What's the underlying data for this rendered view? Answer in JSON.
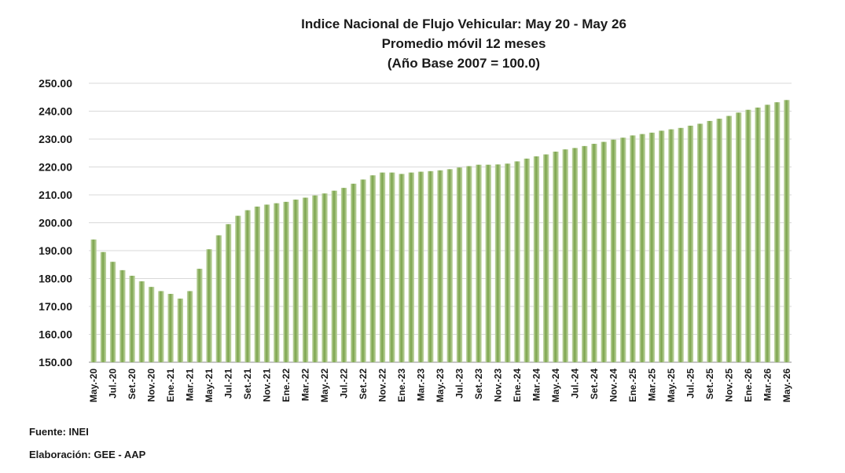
{
  "title_lines": [
    "Indice Nacional de Flujo Vehicular: May 20 - May 26",
    "Promedio móvil 12 meses",
    "(Año Base 2007 = 100.0)"
  ],
  "source": "Fuente: INEI",
  "elaboration": "Elaboración: GEE - AAP",
  "colors": {
    "bar_light": "#c4d8a8",
    "bar_dark": "#7aa34a",
    "grid": "#d9d9d9",
    "axis": "#8c8c8c"
  },
  "chart_data": {
    "type": "bar",
    "title": "Indice Nacional de Flujo Vehicular: May 20 - May 26",
    "subtitle": "Promedio móvil 12 meses (Año Base 2007 = 100.0)",
    "xlabel": "",
    "ylabel": "",
    "ylim": [
      150,
      250
    ],
    "yticks": [
      "150.00",
      "160.00",
      "170.00",
      "180.00",
      "190.00",
      "200.00",
      "210.00",
      "220.00",
      "230.00",
      "240.00",
      "250.00"
    ],
    "grid": true,
    "legend": "none",
    "x_tick_labels": [
      "May.-20",
      "Jul.-20",
      "Set.-20",
      "Nov.-20",
      "Ene.-21",
      "Mar.-21",
      "May.-21",
      "Jul.-21",
      "Set.-21",
      "Nov.-21",
      "Ene.-22",
      "Mar.-22",
      "May.-22",
      "Jul.-22",
      "Set.-22",
      "Nov.-22",
      "Ene.-23",
      "Mar.-23",
      "May.-23",
      "Jul.-23",
      "Set.-23",
      "Nov.-23",
      "Ene.-24",
      "Mar.-24",
      "May.-24",
      "Jul.-24",
      "Set.-24",
      "Nov.-24",
      "Ene.-25",
      "Mar.-25",
      "May.-25",
      "Jul.-25",
      "Set.-25",
      "Nov.-25",
      "Ene.-26",
      "Mar.-26",
      "May.-26"
    ],
    "categories": [
      "May.-20",
      "Jun.-20",
      "Jul.-20",
      "Ago.-20",
      "Set.-20",
      "Oct.-20",
      "Nov.-20",
      "Dic.-20",
      "Ene.-21",
      "Feb.-21",
      "Mar.-21",
      "Abr.-21",
      "May.-21",
      "Jun.-21",
      "Jul.-21",
      "Ago.-21",
      "Set.-21",
      "Oct.-21",
      "Nov.-21",
      "Dic.-21",
      "Ene.-22",
      "Feb.-22",
      "Mar.-22",
      "Abr.-22",
      "May.-22",
      "Jun.-22",
      "Jul.-22",
      "Ago.-22",
      "Set.-22",
      "Oct.-22",
      "Nov.-22",
      "Dic.-22",
      "Ene.-23",
      "Feb.-23",
      "Mar.-23",
      "Abr.-23",
      "May.-23",
      "Jun.-23",
      "Jul.-23",
      "Ago.-23",
      "Set.-23",
      "Oct.-23",
      "Nov.-23",
      "Dic.-23",
      "Ene.-24",
      "Feb.-24",
      "Mar.-24",
      "Abr.-24",
      "May.-24",
      "Jun.-24",
      "Jul.-24",
      "Ago.-24",
      "Set.-24",
      "Oct.-24",
      "Nov.-24",
      "Dic.-24",
      "Ene.-25",
      "Feb.-25",
      "Mar.-25",
      "Abr.-25",
      "May.-25",
      "Jun.-25",
      "Jul.-25",
      "Ago.-25",
      "Set.-25",
      "Oct.-25",
      "Nov.-25",
      "Dic.-25",
      "Ene.-26",
      "Feb.-26",
      "Mar.-26",
      "Abr.-26",
      "May.-26"
    ],
    "values": [
      194.0,
      189.5,
      186.0,
      183.0,
      181.0,
      179.0,
      177.0,
      175.5,
      174.5,
      172.8,
      175.5,
      183.5,
      190.5,
      195.5,
      199.5,
      202.5,
      204.5,
      205.8,
      206.5,
      207.0,
      207.5,
      208.3,
      209.0,
      209.8,
      210.5,
      211.5,
      212.5,
      214.0,
      215.5,
      217.0,
      218.0,
      218.0,
      217.5,
      218.0,
      218.3,
      218.5,
      218.8,
      219.2,
      219.8,
      220.3,
      220.8,
      220.8,
      220.9,
      221.2,
      222.0,
      223.0,
      223.8,
      224.5,
      225.5,
      226.3,
      226.8,
      227.5,
      228.3,
      229.0,
      229.8,
      230.5,
      231.3,
      231.8,
      232.3,
      233.0,
      233.5,
      234.0,
      234.8,
      235.5,
      236.5,
      237.3,
      238.3,
      239.5,
      240.5,
      241.3,
      242.3,
      243.2,
      244.0
    ]
  }
}
